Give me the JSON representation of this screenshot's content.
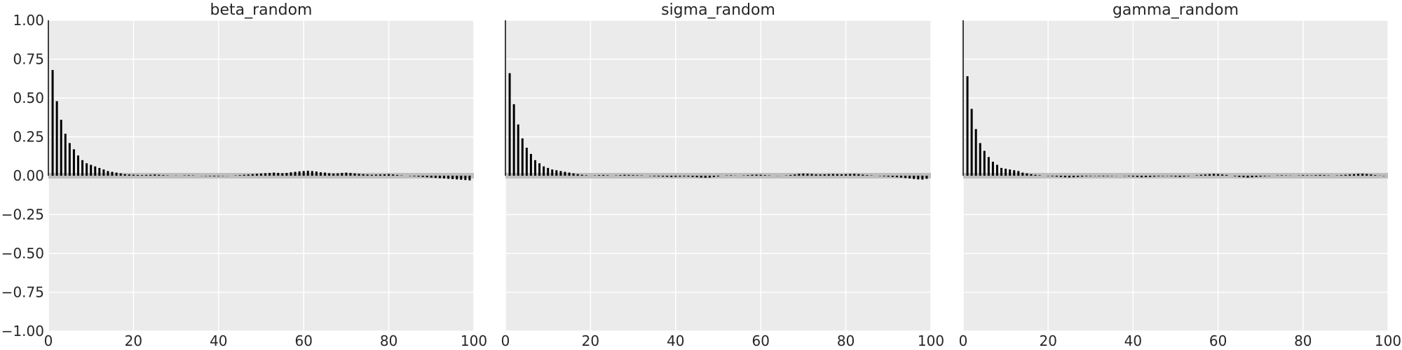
{
  "chart_data": [
    {
      "type": "bar",
      "title": "beta_random",
      "xlabel": "",
      "ylabel": "",
      "xlim": [
        0,
        100
      ],
      "ylim": [
        -1.0,
        1.0
      ],
      "grid": true,
      "xticks": [
        "0",
        "20",
        "40",
        "60",
        "80",
        "100"
      ],
      "yticks": [
        "1.00",
        "0.75",
        "0.50",
        "0.25",
        "0.00",
        "−0.25",
        "−0.50",
        "−0.75",
        "−1.00"
      ],
      "lags": [
        0,
        1,
        2,
        3,
        4,
        5,
        6,
        7,
        8,
        9,
        10,
        11,
        12,
        13,
        14,
        15,
        16,
        17,
        18,
        19,
        20,
        21,
        22,
        23,
        24,
        25,
        26,
        27,
        28,
        29,
        30,
        31,
        32,
        33,
        34,
        35,
        36,
        37,
        38,
        39,
        40,
        41,
        42,
        43,
        44,
        45,
        46,
        47,
        48,
        49,
        50,
        51,
        52,
        53,
        54,
        55,
        56,
        57,
        58,
        59,
        60,
        61,
        62,
        63,
        64,
        65,
        66,
        67,
        68,
        69,
        70,
        71,
        72,
        73,
        74,
        75,
        76,
        77,
        78,
        79,
        80,
        81,
        82,
        83,
        84,
        85,
        86,
        87,
        88,
        89,
        90,
        91,
        92,
        93,
        94,
        95,
        96,
        97,
        98,
        99
      ],
      "values": [
        1.0,
        0.68,
        0.48,
        0.36,
        0.27,
        0.21,
        0.17,
        0.13,
        0.1,
        0.08,
        0.07,
        0.06,
        0.05,
        0.04,
        0.03,
        0.025,
        0.02,
        0.015,
        0.01,
        0.008,
        0.006,
        0.005,
        0.004,
        0.005,
        0.006,
        0.008,
        0.006,
        0.004,
        0.002,
        0.0,
        0.001,
        0.0,
        0.002,
        0.003,
        0.002,
        0.0,
        -0.001,
        -0.002,
        -0.003,
        -0.004,
        -0.003,
        -0.002,
        -0.001,
        0.0,
        0.002,
        0.004,
        0.006,
        0.008,
        0.01,
        0.012,
        0.014,
        0.016,
        0.018,
        0.02,
        0.018,
        0.016,
        0.018,
        0.022,
        0.025,
        0.028,
        0.03,
        0.032,
        0.03,
        0.027,
        0.022,
        0.02,
        0.016,
        0.014,
        0.015,
        0.018,
        0.02,
        0.018,
        0.015,
        0.012,
        0.01,
        0.008,
        0.006,
        0.007,
        0.008,
        0.009,
        0.01,
        0.008,
        0.005,
        0.002,
        0.0,
        -0.002,
        -0.004,
        -0.006,
        -0.008,
        -0.01,
        -0.012,
        -0.014,
        -0.016,
        -0.018,
        -0.02,
        -0.022,
        -0.024,
        -0.026,
        -0.028,
        -0.03
      ]
    },
    {
      "type": "bar",
      "title": "sigma_random",
      "xlabel": "",
      "ylabel": "",
      "xlim": [
        0,
        100
      ],
      "ylim": [
        -1.0,
        1.0
      ],
      "grid": true,
      "xticks": [
        "0",
        "20",
        "40",
        "60",
        "80",
        "100"
      ],
      "lags": [
        0,
        1,
        2,
        3,
        4,
        5,
        6,
        7,
        8,
        9,
        10,
        11,
        12,
        13,
        14,
        15,
        16,
        17,
        18,
        19,
        20,
        21,
        22,
        23,
        24,
        25,
        26,
        27,
        28,
        29,
        30,
        31,
        32,
        33,
        34,
        35,
        36,
        37,
        38,
        39,
        40,
        41,
        42,
        43,
        44,
        45,
        46,
        47,
        48,
        49,
        50,
        51,
        52,
        53,
        54,
        55,
        56,
        57,
        58,
        59,
        60,
        61,
        62,
        63,
        64,
        65,
        66,
        67,
        68,
        69,
        70,
        71,
        72,
        73,
        74,
        75,
        76,
        77,
        78,
        79,
        80,
        81,
        82,
        83,
        84,
        85,
        86,
        87,
        88,
        89,
        90,
        91,
        92,
        93,
        94,
        95,
        96,
        97,
        98,
        99
      ],
      "values": [
        1.0,
        0.66,
        0.46,
        0.33,
        0.24,
        0.18,
        0.14,
        0.1,
        0.08,
        0.06,
        0.05,
        0.04,
        0.035,
        0.03,
        0.025,
        0.02,
        0.015,
        0.01,
        0.006,
        0.003,
        0.0,
        0.002,
        0.004,
        0.005,
        0.003,
        0.0,
        0.002,
        0.004,
        0.006,
        0.005,
        0.004,
        0.003,
        0.002,
        0.0,
        -0.002,
        -0.004,
        -0.005,
        -0.006,
        -0.007,
        -0.008,
        -0.007,
        -0.006,
        -0.005,
        -0.006,
        -0.008,
        -0.01,
        -0.012,
        -0.013,
        -0.012,
        -0.008,
        -0.005,
        0.0,
        0.002,
        0.003,
        0.001,
        0.0,
        0.002,
        0.004,
        0.006,
        0.007,
        0.006,
        0.004,
        0.002,
        0.0,
        -0.001,
        0.0,
        0.002,
        0.005,
        0.008,
        0.012,
        0.014,
        0.013,
        0.011,
        0.009,
        0.008,
        0.009,
        0.01,
        0.011,
        0.01,
        0.009,
        0.01,
        0.011,
        0.012,
        0.01,
        0.007,
        0.004,
        0.002,
        0.0,
        -0.002,
        -0.004,
        -0.006,
        -0.008,
        -0.01,
        -0.012,
        -0.015,
        -0.018,
        -0.021,
        -0.024,
        -0.025,
        -0.02
      ]
    },
    {
      "type": "bar",
      "title": "gamma_random",
      "xlabel": "",
      "ylabel": "",
      "xlim": [
        0,
        100
      ],
      "ylim": [
        -1.0,
        1.0
      ],
      "grid": true,
      "xticks": [
        "0",
        "20",
        "40",
        "60",
        "80",
        "100"
      ],
      "lags": [
        0,
        1,
        2,
        3,
        4,
        5,
        6,
        7,
        8,
        9,
        10,
        11,
        12,
        13,
        14,
        15,
        16,
        17,
        18,
        19,
        20,
        21,
        22,
        23,
        24,
        25,
        26,
        27,
        28,
        29,
        30,
        31,
        32,
        33,
        34,
        35,
        36,
        37,
        38,
        39,
        40,
        41,
        42,
        43,
        44,
        45,
        46,
        47,
        48,
        49,
        50,
        51,
        52,
        53,
        54,
        55,
        56,
        57,
        58,
        59,
        60,
        61,
        62,
        63,
        64,
        65,
        66,
        67,
        68,
        69,
        70,
        71,
        72,
        73,
        74,
        75,
        76,
        77,
        78,
        79,
        80,
        81,
        82,
        83,
        84,
        85,
        86,
        87,
        88,
        89,
        90,
        91,
        92,
        93,
        94,
        95,
        96,
        97,
        98,
        99
      ],
      "values": [
        1.0,
        0.64,
        0.43,
        0.3,
        0.21,
        0.16,
        0.12,
        0.09,
        0.07,
        0.05,
        0.045,
        0.04,
        0.035,
        0.03,
        0.02,
        0.015,
        0.01,
        0.006,
        0.003,
        0.0,
        -0.002,
        -0.004,
        -0.006,
        -0.008,
        -0.01,
        -0.011,
        -0.01,
        -0.008,
        -0.006,
        -0.004,
        -0.003,
        -0.002,
        -0.003,
        -0.004,
        -0.003,
        -0.002,
        -0.001,
        0.0,
        -0.002,
        -0.004,
        -0.006,
        -0.008,
        -0.01,
        -0.009,
        -0.008,
        -0.006,
        -0.004,
        -0.003,
        -0.002,
        -0.004,
        -0.006,
        -0.008,
        -0.006,
        -0.003,
        0.0,
        0.003,
        0.006,
        0.008,
        0.01,
        0.012,
        0.01,
        0.008,
        0.005,
        0.0,
        -0.004,
        -0.008,
        -0.01,
        -0.012,
        -0.01,
        -0.008,
        -0.006,
        -0.004,
        -0.002,
        0.0,
        0.002,
        0.003,
        0.002,
        0.001,
        0.0,
        0.002,
        0.004,
        0.003,
        0.002,
        0.004,
        0.005,
        0.004,
        0.002,
        0.0,
        0.002,
        0.004,
        0.006,
        0.008,
        0.01,
        0.012,
        0.013,
        0.011,
        0.008,
        0.004,
        0.001,
        -0.002
      ]
    }
  ],
  "colors": {
    "panel_background": "#ebebeb",
    "grid": "#ffffff",
    "bars": "#000000",
    "zero_band": "#bebebe",
    "text": "#262626"
  }
}
